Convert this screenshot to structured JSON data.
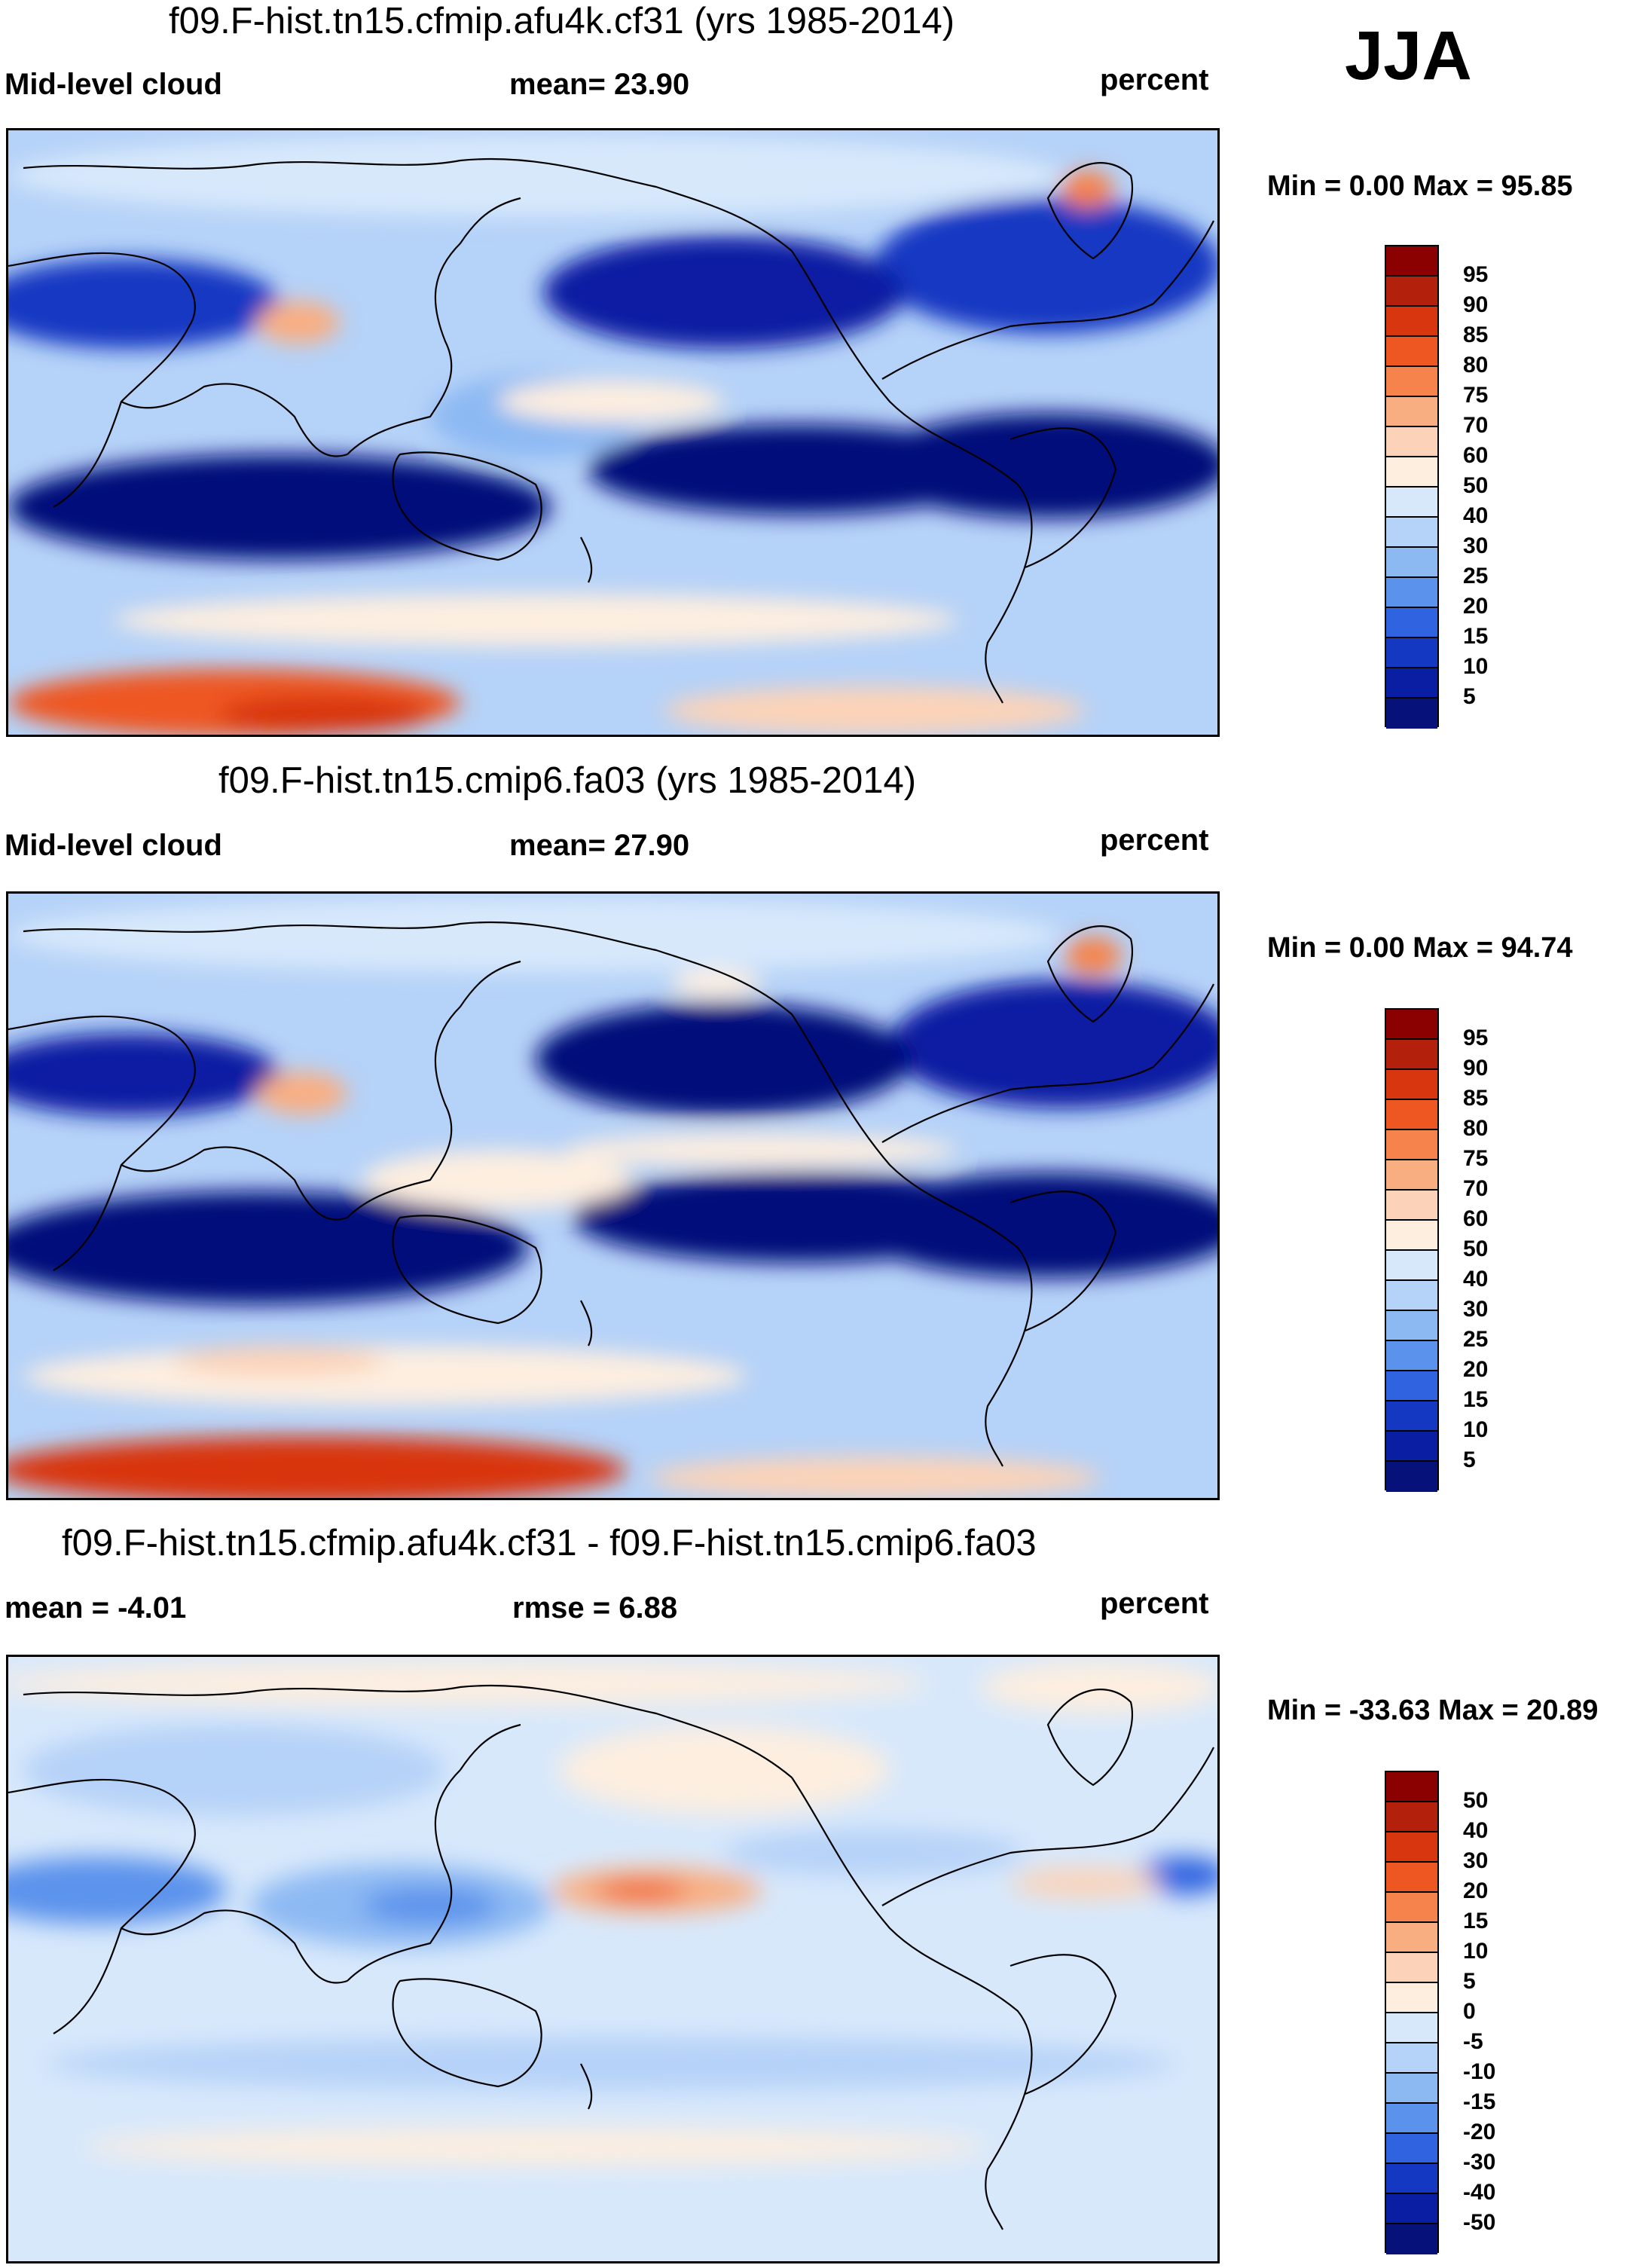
{
  "season": "JJA",
  "panels": [
    {
      "title": "f09.F-hist.tn15.cfmip.afu4k.cf31 (yrs 1985-2014)",
      "left_label": "Mid-level cloud",
      "center_label": "mean=  23.90",
      "right_label": "percent",
      "minmax": "Min =   0.00 Max =  95.85"
    },
    {
      "title": "f09.F-hist.tn15.cmip6.fa03 (yrs 1985-2014)",
      "left_label": "Mid-level cloud",
      "center_label": "mean=  27.90",
      "right_label": "percent",
      "minmax": "Min =   0.00 Max =  94.74"
    },
    {
      "title": "f09.F-hist.tn15.cfmip.afu4k.cf31 - f09.F-hist.tn15.cmip6.fa03",
      "left_label": "mean =  -4.01",
      "center_label": "rmse =    6.88",
      "right_label": "percent",
      "minmax": "Min = -33.63 Max =  20.89"
    }
  ],
  "colorbar_abs": {
    "labels": [
      "95",
      "90",
      "85",
      "80",
      "75",
      "70",
      "60",
      "50",
      "40",
      "30",
      "25",
      "20",
      "15",
      "10",
      "5"
    ],
    "colors": [
      "#8b0000",
      "#b3200b",
      "#d8360f",
      "#ee5622",
      "#f6834b",
      "#f9ae82",
      "#fcd3b8",
      "#fdeee0",
      "#d7e8fb",
      "#b5d2f8",
      "#8db9f3",
      "#5b93ec",
      "#2f63e0",
      "#1538c2",
      "#0a1ea3",
      "#06117a"
    ]
  },
  "colorbar_diff": {
    "labels": [
      "50",
      "40",
      "30",
      "20",
      "15",
      "10",
      "5",
      "0",
      "-5",
      "-10",
      "-15",
      "-20",
      "-30",
      "-40",
      "-50"
    ],
    "colors": [
      "#8b0000",
      "#b3200b",
      "#d8360f",
      "#ee5622",
      "#f6834b",
      "#f9ae82",
      "#fcd3b8",
      "#fdeee0",
      "#d7e8fb",
      "#b5d2f8",
      "#8db9f3",
      "#5b93ec",
      "#2f63e0",
      "#1538c2",
      "#0a1ea3",
      "#06117a"
    ]
  }
}
